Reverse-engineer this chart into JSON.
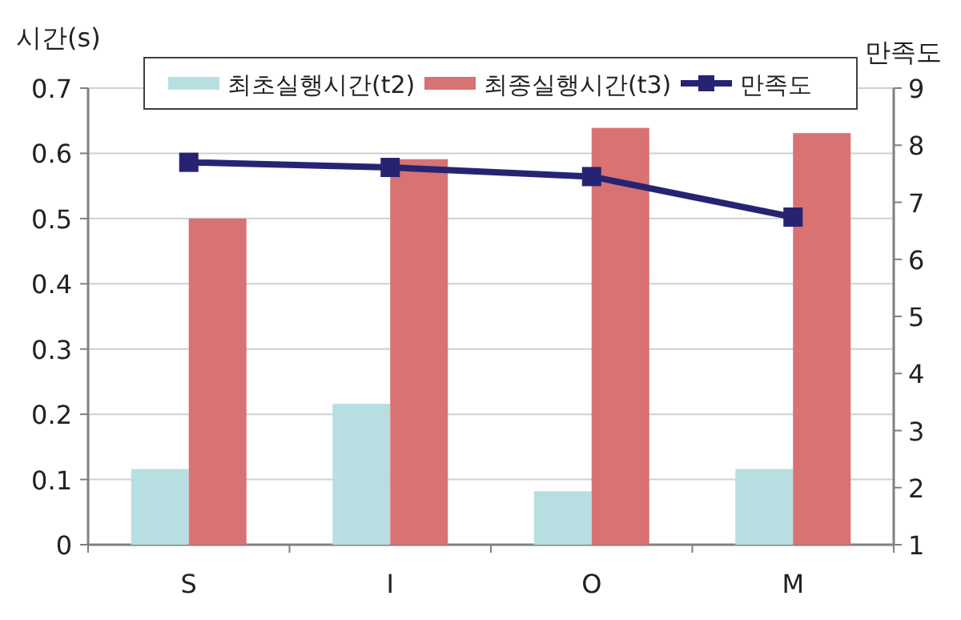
{
  "chart_data": {
    "type": "bar",
    "ylabel": "시간(s)",
    "y2label": "만족도",
    "categories": [
      "S",
      "I",
      "O",
      "M"
    ],
    "series": [
      {
        "name": "최초실행시간(t2)",
        "color": "#b7dfe2",
        "values": [
          0.116,
          0.216,
          0.082,
          0.116
        ]
      },
      {
        "name": "최종실행시간(t3)",
        "color": "#d87273",
        "values": [
          0.5,
          0.591,
          0.639,
          0.631
        ]
      },
      {
        "name": "만족도",
        "type": "line",
        "axis": "y2",
        "color": "#262472",
        "marker": "square",
        "values": [
          7.7,
          7.61,
          7.45,
          6.74
        ]
      }
    ],
    "ylim": [
      0,
      0.7
    ],
    "yticks": [
      0,
      0.1,
      0.2,
      0.3,
      0.4,
      0.5,
      0.6,
      0.7
    ],
    "y2lim": [
      1,
      9
    ],
    "y2ticks": [
      1,
      2,
      3,
      4,
      5,
      6,
      7,
      8,
      9
    ],
    "grid": "y",
    "legend": "top"
  }
}
